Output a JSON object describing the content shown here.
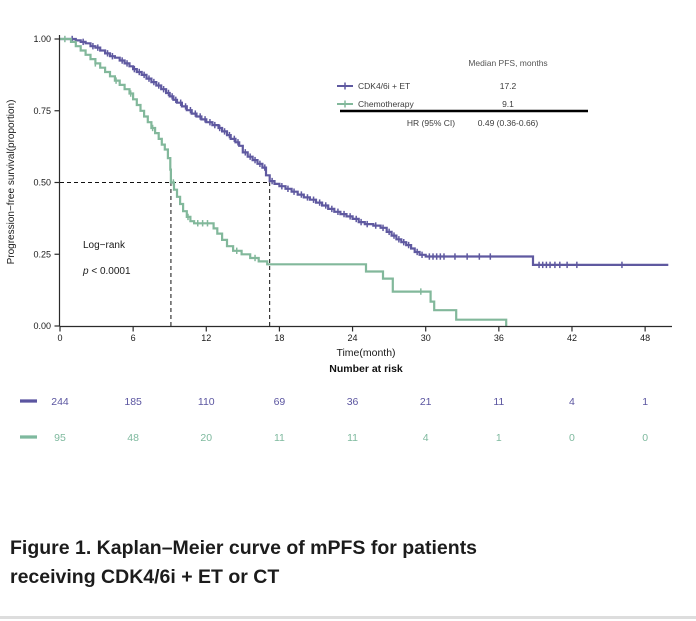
{
  "figure": {
    "caption_line1": "Figure 1. Kaplan–Meier curve of mPFS for patients",
    "caption_line2": "receiving CDK4/6i + ET or CT"
  },
  "chart_data": {
    "type": "line",
    "subtype": "kaplan-meier-step",
    "title": "",
    "xlabel": "Time(month)",
    "ylabel": "Progression−free survival(proportion)",
    "xlim": [
      0,
      50.2
    ],
    "ylim": [
      0,
      1.0
    ],
    "x_ticks": [
      0,
      6,
      12,
      18,
      24,
      30,
      36,
      42,
      48
    ],
    "y_ticks": [
      0,
      0.25,
      0.5,
      0.75,
      1.0
    ],
    "y_tick_labels": [
      "0.00",
      "0.25",
      "0.50",
      "0.75",
      "1.00"
    ],
    "grid": false,
    "legend_position": "top-right-table",
    "annotations": {
      "logrank_label": "Log−rank",
      "p_prefix": "p",
      "p_rest": " < 0.0001"
    },
    "median_reference": {
      "y": 0.5,
      "x_values": [
        9.1,
        17.2
      ]
    },
    "legend_table": {
      "header": "Median PFS, months",
      "rows": [
        {
          "label": "CDK4/6i + ET",
          "value": "17.2",
          "color": "#5f59a0"
        },
        {
          "label": "Chemotherapy",
          "value": "9.1",
          "color": "#82b89b"
        }
      ],
      "hr_label": "HR (95% CI)",
      "hr_value": "0.49 (0.36-0.66)"
    },
    "series": [
      {
        "name": "CDK4/6i + ET",
        "color": "#5f59a0",
        "steps": [
          [
            0,
            1.0
          ],
          [
            1.3,
            0.995
          ],
          [
            1.7,
            0.99
          ],
          [
            2.1,
            0.985
          ],
          [
            2.5,
            0.975
          ],
          [
            2.9,
            0.97
          ],
          [
            3.3,
            0.96
          ],
          [
            3.7,
            0.95
          ],
          [
            4.1,
            0.94
          ],
          [
            4.5,
            0.935
          ],
          [
            4.9,
            0.925
          ],
          [
            5.3,
            0.915
          ],
          [
            5.7,
            0.905
          ],
          [
            6.0,
            0.895
          ],
          [
            6.3,
            0.885
          ],
          [
            6.7,
            0.875
          ],
          [
            7.1,
            0.862
          ],
          [
            7.5,
            0.85
          ],
          [
            7.9,
            0.838
          ],
          [
            8.3,
            0.825
          ],
          [
            8.7,
            0.812
          ],
          [
            9.0,
            0.8
          ],
          [
            9.3,
            0.788
          ],
          [
            9.6,
            0.778
          ],
          [
            10.0,
            0.765
          ],
          [
            10.4,
            0.752
          ],
          [
            10.8,
            0.74
          ],
          [
            11.2,
            0.73
          ],
          [
            11.6,
            0.72
          ],
          [
            12.0,
            0.71
          ],
          [
            12.5,
            0.7
          ],
          [
            13.0,
            0.69
          ],
          [
            13.3,
            0.678
          ],
          [
            13.7,
            0.665
          ],
          [
            14.0,
            0.652
          ],
          [
            14.4,
            0.64
          ],
          [
            14.7,
            0.628
          ],
          [
            15.0,
            0.605
          ],
          [
            15.4,
            0.59
          ],
          [
            15.8,
            0.578
          ],
          [
            16.2,
            0.565
          ],
          [
            16.6,
            0.552
          ],
          [
            16.9,
            0.525
          ],
          [
            17.2,
            0.505
          ],
          [
            17.6,
            0.495
          ],
          [
            18.0,
            0.487
          ],
          [
            18.5,
            0.478
          ],
          [
            19.0,
            0.468
          ],
          [
            19.5,
            0.458
          ],
          [
            20.0,
            0.448
          ],
          [
            20.5,
            0.44
          ],
          [
            21.0,
            0.43
          ],
          [
            21.5,
            0.42
          ],
          [
            22.0,
            0.408
          ],
          [
            22.5,
            0.398
          ],
          [
            23.0,
            0.39
          ],
          [
            23.5,
            0.382
          ],
          [
            24.0,
            0.373
          ],
          [
            24.5,
            0.362
          ],
          [
            25.0,
            0.355
          ],
          [
            25.7,
            0.35
          ],
          [
            26.3,
            0.342
          ],
          [
            26.8,
            0.328
          ],
          [
            27.2,
            0.315
          ],
          [
            27.6,
            0.302
          ],
          [
            28.0,
            0.292
          ],
          [
            28.4,
            0.282
          ],
          [
            28.8,
            0.27
          ],
          [
            29.1,
            0.258
          ],
          [
            29.5,
            0.248
          ],
          [
            30.0,
            0.242
          ],
          [
            38.8,
            0.213
          ],
          [
            49.9,
            0.213
          ]
        ],
        "censor_times": [
          1.0,
          1.9,
          2.7,
          3.1,
          3.9,
          4.3,
          5.1,
          5.5,
          6.1,
          6.5,
          6.9,
          7.3,
          7.7,
          8.1,
          8.5,
          8.9,
          9.2,
          9.5,
          9.9,
          10.3,
          10.7,
          11.1,
          11.5,
          11.9,
          12.3,
          12.7,
          13.1,
          13.5,
          13.9,
          14.3,
          14.6,
          15.2,
          15.6,
          16.0,
          16.4,
          16.8,
          17.4,
          18.2,
          18.7,
          19.2,
          19.8,
          20.3,
          20.8,
          21.3,
          21.8,
          22.3,
          22.8,
          23.3,
          23.8,
          24.3,
          24.7,
          25.2,
          25.9,
          26.5,
          27.0,
          27.4,
          27.8,
          28.2,
          28.6,
          29.3,
          29.7,
          30.3,
          30.6,
          30.9,
          31.2,
          31.5,
          32.4,
          33.4,
          34.4,
          35.3,
          39.3,
          39.6,
          39.9,
          40.2,
          40.6,
          41.0,
          41.6,
          42.4,
          46.1
        ]
      },
      {
        "name": "Chemotherapy",
        "color": "#82b89b",
        "steps": [
          [
            0,
            1.0
          ],
          [
            0.9,
            0.99
          ],
          [
            1.3,
            0.975
          ],
          [
            1.7,
            0.96
          ],
          [
            2.1,
            0.945
          ],
          [
            2.5,
            0.93
          ],
          [
            2.9,
            0.915
          ],
          [
            3.3,
            0.9
          ],
          [
            3.7,
            0.885
          ],
          [
            4.1,
            0.87
          ],
          [
            4.5,
            0.855
          ],
          [
            4.9,
            0.84
          ],
          [
            5.3,
            0.825
          ],
          [
            5.7,
            0.81
          ],
          [
            6.0,
            0.79
          ],
          [
            6.3,
            0.77
          ],
          [
            6.6,
            0.75
          ],
          [
            6.9,
            0.73
          ],
          [
            7.2,
            0.71
          ],
          [
            7.5,
            0.69
          ],
          [
            7.8,
            0.672
          ],
          [
            8.1,
            0.652
          ],
          [
            8.35,
            0.632
          ],
          [
            8.6,
            0.615
          ],
          [
            8.85,
            0.585
          ],
          [
            9.05,
            0.545
          ],
          [
            9.1,
            0.5
          ],
          [
            9.35,
            0.475
          ],
          [
            9.6,
            0.45
          ],
          [
            9.85,
            0.425
          ],
          [
            10.1,
            0.4
          ],
          [
            10.4,
            0.38
          ],
          [
            10.7,
            0.365
          ],
          [
            11.0,
            0.358
          ],
          [
            12.6,
            0.34
          ],
          [
            12.9,
            0.322
          ],
          [
            13.3,
            0.3
          ],
          [
            13.7,
            0.278
          ],
          [
            14.2,
            0.262
          ],
          [
            14.9,
            0.25
          ],
          [
            15.6,
            0.237
          ],
          [
            16.3,
            0.225
          ],
          [
            17.0,
            0.215
          ],
          [
            25.1,
            0.19
          ],
          [
            26.5,
            0.165
          ],
          [
            27.3,
            0.12
          ],
          [
            30.4,
            0.085
          ],
          [
            30.7,
            0.055
          ],
          [
            32.5,
            0.022
          ],
          [
            36.6,
            0.0
          ]
        ],
        "censor_times": [
          0.4,
          2.9,
          4.6,
          5.8,
          7.6,
          9.3,
          10.5,
          11.3,
          11.7,
          12.1,
          14.5,
          16.0,
          29.6
        ]
      }
    ],
    "number_at_risk": {
      "title": "Number at risk",
      "times": [
        0,
        6,
        12,
        18,
        24,
        30,
        36,
        42,
        48
      ],
      "rows": [
        {
          "name": "CDK4/6i + ET",
          "color": "#5b55a0",
          "counts": [
            244,
            185,
            110,
            69,
            36,
            21,
            11,
            4,
            1
          ]
        },
        {
          "name": "Chemotherapy",
          "color": "#7eb99e",
          "counts": [
            95,
            48,
            20,
            11,
            11,
            4,
            1,
            0,
            0
          ]
        }
      ]
    }
  }
}
